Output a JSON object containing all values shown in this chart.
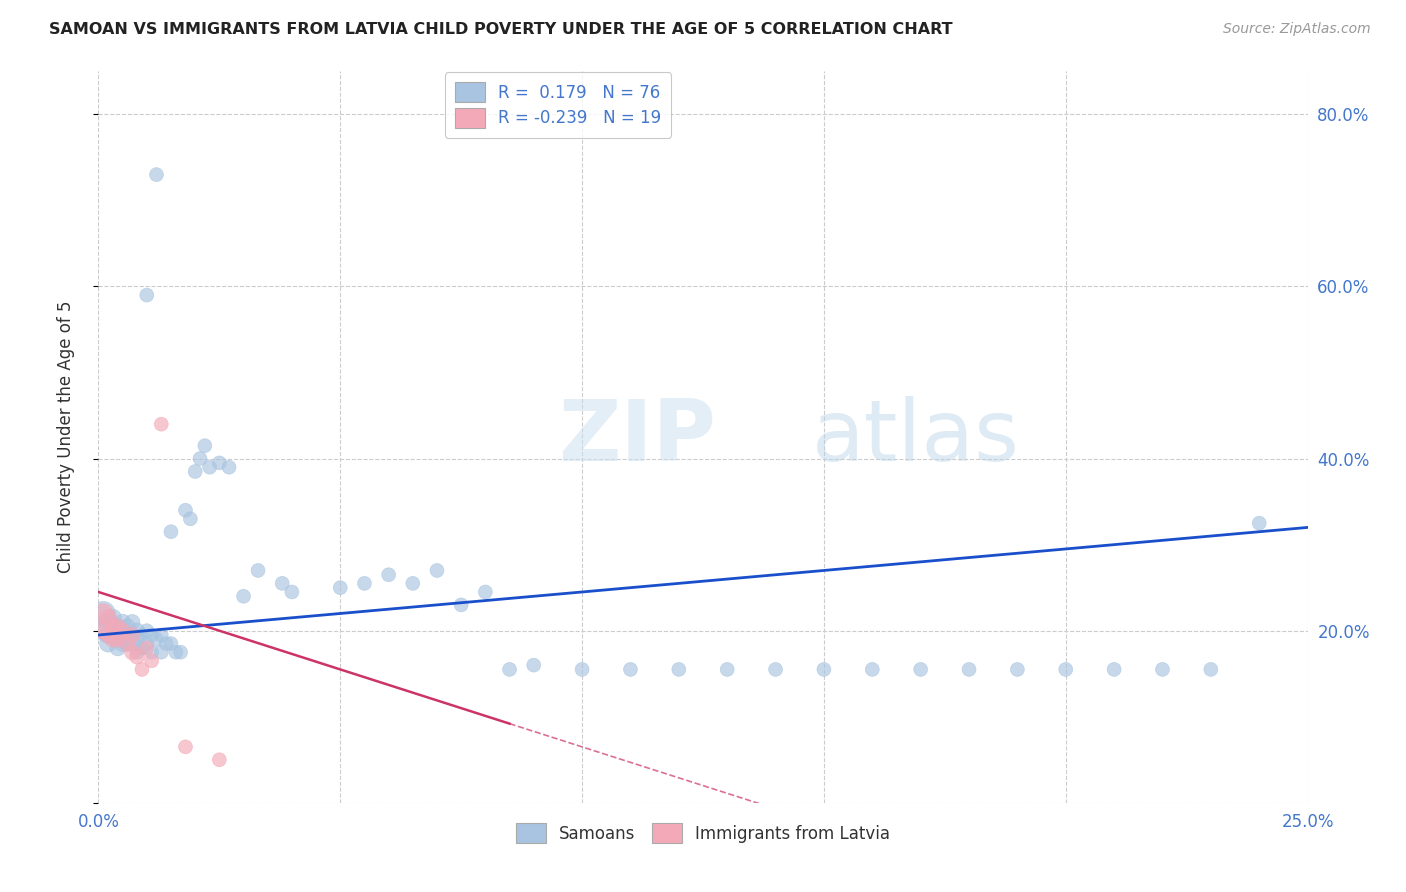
{
  "title": "SAMOAN VS IMMIGRANTS FROM LATVIA CHILD POVERTY UNDER THE AGE OF 5 CORRELATION CHART",
  "source": "Source: ZipAtlas.com",
  "ylabel": "Child Poverty Under the Age of 5",
  "watermark_zip": "ZIP",
  "watermark_atlas": "atlas",
  "xlim": [
    0.0,
    0.25
  ],
  "ylim": [
    0.0,
    0.85
  ],
  "legend_R_samoan": "R =  0.179",
  "legend_N_samoan": "N = 76",
  "legend_R_latvia": "R = -0.239",
  "legend_N_latvia": "N = 19",
  "samoan_color": "#a8c4e0",
  "latvia_color": "#f4a9b8",
  "samoan_line_color": "#1a4fcc",
  "latvia_line_color": "#cc3366",
  "background_color": "#ffffff",
  "grid_color": "#cccccc",
  "title_color": "#333333",
  "axis_color": "#4477cc",
  "samoan_x": [
    0.001,
    0.001,
    0.002,
    0.002,
    0.002,
    0.003,
    0.003,
    0.003,
    0.004,
    0.004,
    0.004,
    0.005,
    0.005,
    0.005,
    0.005,
    0.006,
    0.006,
    0.006,
    0.007,
    0.007,
    0.007,
    0.008,
    0.008,
    0.008,
    0.009,
    0.009,
    0.01,
    0.01,
    0.01,
    0.011,
    0.011,
    0.012,
    0.012,
    0.013,
    0.013,
    0.014,
    0.015,
    0.015,
    0.016,
    0.017,
    0.018,
    0.019,
    0.02,
    0.021,
    0.022,
    0.023,
    0.025,
    0.027,
    0.03,
    0.033,
    0.038,
    0.04,
    0.05,
    0.055,
    0.06,
    0.065,
    0.07,
    0.075,
    0.08,
    0.085,
    0.09,
    0.1,
    0.11,
    0.12,
    0.13,
    0.14,
    0.15,
    0.16,
    0.17,
    0.18,
    0.19,
    0.2,
    0.21,
    0.22,
    0.23,
    0.24
  ],
  "samoan_y": [
    0.22,
    0.2,
    0.21,
    0.195,
    0.185,
    0.2,
    0.215,
    0.195,
    0.205,
    0.19,
    0.18,
    0.2,
    0.21,
    0.195,
    0.185,
    0.205,
    0.195,
    0.185,
    0.21,
    0.195,
    0.185,
    0.2,
    0.19,
    0.175,
    0.195,
    0.18,
    0.59,
    0.2,
    0.185,
    0.195,
    0.175,
    0.73,
    0.19,
    0.195,
    0.175,
    0.185,
    0.315,
    0.185,
    0.175,
    0.175,
    0.34,
    0.33,
    0.385,
    0.4,
    0.415,
    0.39,
    0.395,
    0.39,
    0.24,
    0.27,
    0.255,
    0.245,
    0.25,
    0.255,
    0.265,
    0.255,
    0.27,
    0.23,
    0.245,
    0.155,
    0.16,
    0.155,
    0.155,
    0.155,
    0.155,
    0.155,
    0.155,
    0.155,
    0.155,
    0.155,
    0.155,
    0.155,
    0.155,
    0.155,
    0.155,
    0.325
  ],
  "samoan_sizes": [
    300,
    200,
    200,
    150,
    150,
    150,
    150,
    150,
    130,
    130,
    130,
    130,
    130,
    130,
    130,
    120,
    120,
    120,
    120,
    120,
    120,
    120,
    120,
    100,
    100,
    100,
    100,
    100,
    100,
    100,
    100,
    100,
    100,
    100,
    100,
    100,
    100,
    100,
    100,
    100,
    100,
    100,
    100,
    100,
    100,
    100,
    100,
    100,
    100,
    100,
    100,
    100,
    100,
    100,
    100,
    100,
    100,
    100,
    100,
    100,
    100,
    100,
    100,
    100,
    100,
    100,
    100,
    100,
    100,
    100,
    100,
    100,
    100,
    100,
    100,
    100
  ],
  "latvia_x": [
    0.001,
    0.001,
    0.002,
    0.002,
    0.003,
    0.003,
    0.004,
    0.004,
    0.005,
    0.006,
    0.007,
    0.007,
    0.008,
    0.009,
    0.01,
    0.011,
    0.013,
    0.018,
    0.025
  ],
  "latvia_y": [
    0.22,
    0.2,
    0.215,
    0.195,
    0.205,
    0.19,
    0.205,
    0.19,
    0.2,
    0.185,
    0.195,
    0.175,
    0.17,
    0.155,
    0.18,
    0.165,
    0.44,
    0.065,
    0.05
  ],
  "latvia_sizes": [
    200,
    150,
    150,
    130,
    130,
    130,
    120,
    120,
    120,
    120,
    120,
    120,
    120,
    100,
    100,
    100,
    100,
    100,
    100
  ]
}
